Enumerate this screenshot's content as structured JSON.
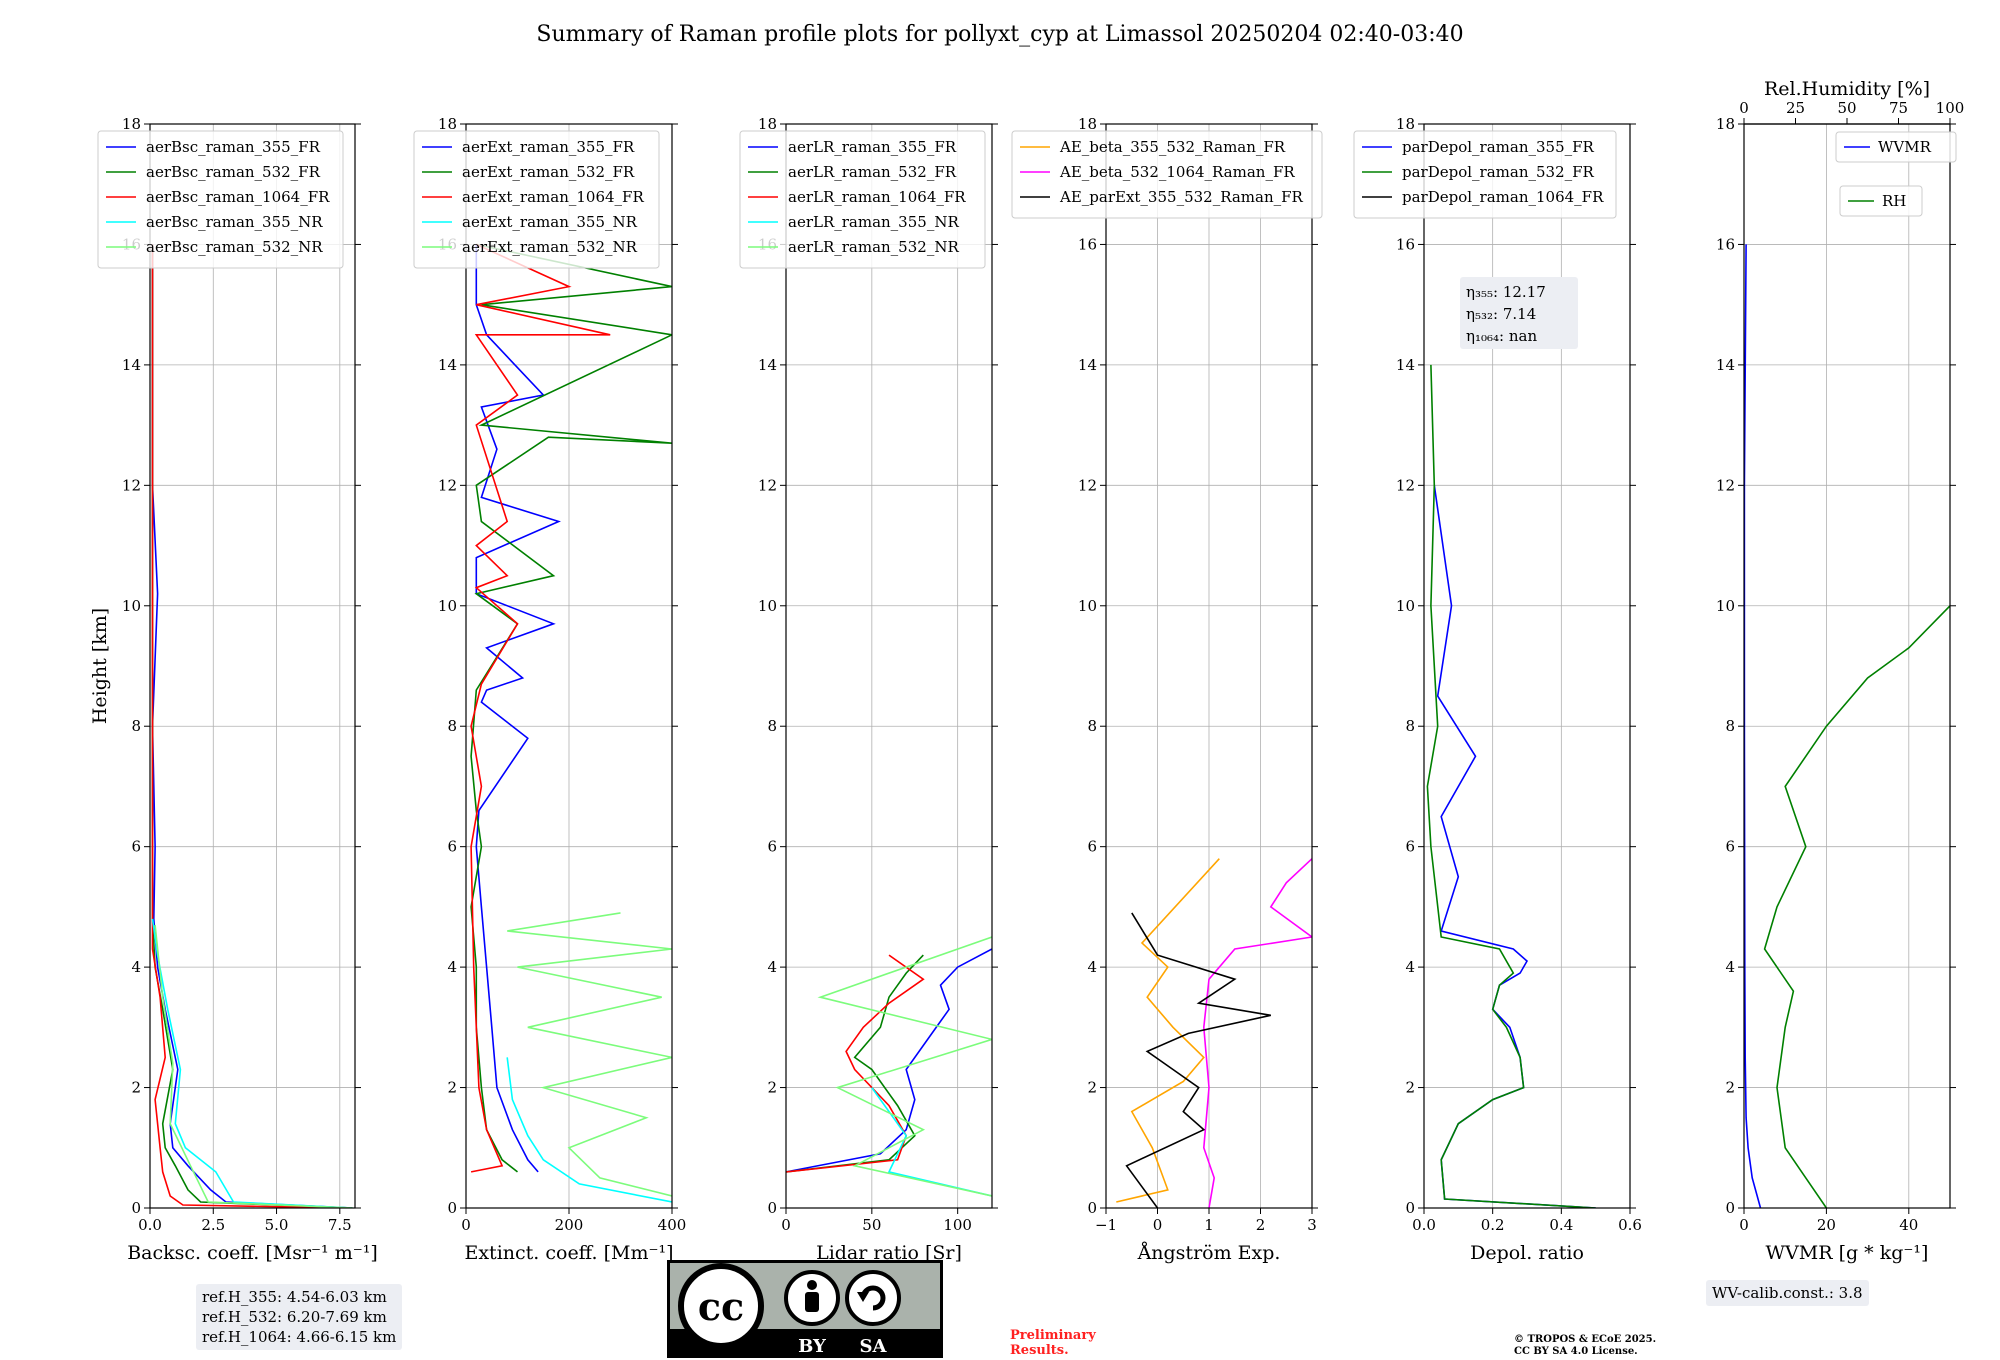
{
  "title": "Summary of Raman profile plots for pollyxt_cyp at Limassol 20250204 02:40-03:40",
  "ylabel": "Height [km]",
  "colors": {
    "c355": "#0000ff",
    "c532": "#008000",
    "c1064": "#ff0000",
    "c355nr": "#00ffff",
    "c532nr": "#7cfc7c",
    "orange": "#ffa500",
    "magenta": "#ff00ff",
    "black": "#000000"
  },
  "chart_data": [
    {
      "type": "line",
      "xlabel": "Backsc. coeff. [Msr⁻¹ m⁻¹]",
      "xlim": [
        0,
        8.1
      ],
      "ylim": [
        0,
        18
      ],
      "xticks": [
        "0.0",
        "2.5",
        "5.0",
        "7.5"
      ],
      "xtick_values": [
        0,
        2.5,
        5,
        7.5
      ],
      "yticks": [
        "0",
        "2",
        "4",
        "6",
        "8",
        "10",
        "12",
        "14",
        "16",
        "18"
      ],
      "legend": [
        "aerBsc_raman_355_FR",
        "aerBsc_raman_532_FR",
        "aerBsc_raman_1064_FR",
        "aerBsc_raman_355_NR",
        "aerBsc_raman_532_NR"
      ],
      "series": [
        {
          "name": "aerBsc_raman_355_FR",
          "color": "#0000ff",
          "x": [
            8.0,
            3.0,
            2.4,
            1.5,
            0.9,
            0.8,
            1.1,
            0.6,
            0.3,
            0.15,
            0.2,
            0.1,
            0.3,
            0.1,
            0.1,
            0.1
          ],
          "y": [
            0,
            0.1,
            0.3,
            0.7,
            1.0,
            1.4,
            2.3,
            3.3,
            4.0,
            4.8,
            6.0,
            8.0,
            10.2,
            12,
            14,
            16
          ]
        },
        {
          "name": "aerBsc_raman_532_FR",
          "color": "#008000",
          "x": [
            8.0,
            2.0,
            1.5,
            1.0,
            0.6,
            0.5,
            0.9,
            0.5,
            0.2,
            0.1,
            0.1,
            0.1
          ],
          "y": [
            0,
            0.1,
            0.3,
            0.7,
            1.0,
            1.4,
            2.3,
            3.3,
            4.0,
            4.8,
            8,
            16
          ]
        },
        {
          "name": "aerBsc_raman_1064_FR",
          "color": "#ff0000",
          "x": [
            8.0,
            1.3,
            0.8,
            0.5,
            0.4,
            0.3,
            0.2,
            0.6,
            0.4,
            0.1,
            0.1
          ],
          "y": [
            0,
            0.05,
            0.2,
            0.6,
            1.0,
            1.4,
            1.8,
            2.5,
            3.5,
            4.3,
            16
          ]
        },
        {
          "name": "aerBsc_raman_355_NR",
          "color": "#00ffff",
          "x": [
            8.0,
            3.3,
            2.6,
            1.4,
            1.0,
            1.2,
            0.7,
            0.3,
            0.1
          ],
          "y": [
            0,
            0.1,
            0.6,
            1.0,
            1.4,
            2.3,
            3.3,
            4.2,
            4.8
          ]
        },
        {
          "name": "aerBsc_raman_532_NR",
          "color": "#7cfc7c",
          "x": [
            8.0,
            2.3,
            1.6,
            0.8,
            0.9,
            0.5,
            0.2
          ],
          "y": [
            0,
            0.1,
            0.7,
            1.4,
            2.4,
            3.5,
            4.7
          ]
        }
      ]
    },
    {
      "type": "line",
      "xlabel": "Extinct. coeff. [Mm⁻¹]",
      "xlim": [
        0,
        400
      ],
      "ylim": [
        0,
        18
      ],
      "xticks": [
        "0",
        "200",
        "400"
      ],
      "xtick_values": [
        0,
        200,
        400
      ],
      "yticks": [
        "0",
        "2",
        "4",
        "6",
        "8",
        "10",
        "12",
        "14",
        "16",
        "18"
      ],
      "legend": [
        "aerExt_raman_355_FR",
        "aerExt_raman_532_FR",
        "aerExt_raman_1064_FR",
        "aerExt_raman_355_NR",
        "aerExt_raman_532_NR"
      ],
      "series": [
        {
          "name": "aerExt_raman_355_FR",
          "color": "#0000ff",
          "x": [
            140,
            120,
            90,
            60,
            50,
            40,
            30,
            20,
            25,
            120,
            30,
            40,
            110,
            40,
            170,
            20,
            20,
            180,
            30,
            60,
            30,
            150,
            40,
            20,
            20
          ],
          "y": [
            0.6,
            0.8,
            1.3,
            2,
            3,
            4,
            5,
            6,
            6.6,
            7.8,
            8.4,
            8.6,
            8.8,
            9.3,
            9.7,
            10.2,
            10.8,
            11.4,
            11.8,
            12.6,
            13.3,
            13.5,
            14.5,
            15,
            16
          ]
        },
        {
          "name": "aerExt_raman_532_FR",
          "color": "#008000",
          "x": [
            100,
            70,
            40,
            30,
            20,
            20,
            10,
            30,
            20,
            10,
            20,
            100,
            20,
            170,
            30,
            20,
            160,
            400,
            30,
            400,
            30,
            400,
            20
          ],
          "y": [
            0.6,
            0.8,
            1.3,
            2,
            3,
            4,
            5,
            6,
            6.6,
            7.5,
            8.6,
            9.7,
            10.2,
            10.5,
            11.4,
            12,
            12.8,
            12.7,
            13,
            14.5,
            15,
            15.3,
            16
          ]
        },
        {
          "name": "aerExt_raman_1064_FR",
          "color": "#ff0000",
          "x": [
            10,
            70,
            40,
            25,
            20,
            15,
            10,
            30,
            10,
            30,
            100,
            20,
            80,
            20,
            80,
            20,
            100,
            20,
            280,
            20,
            200,
            20
          ],
          "y": [
            0.6,
            0.7,
            1.3,
            2,
            3,
            4,
            6,
            7,
            8,
            8.7,
            9.7,
            10.3,
            10.5,
            11,
            11.4,
            13,
            13.5,
            14.5,
            14.5,
            15,
            15.3,
            16
          ]
        },
        {
          "name": "aerExt_raman_355_NR",
          "color": "#00ffff",
          "x": [
            400,
            220,
            150,
            120,
            90,
            80
          ],
          "y": [
            0.1,
            0.4,
            0.8,
            1.2,
            1.8,
            2.5
          ]
        },
        {
          "name": "aerExt_raman_532_NR",
          "color": "#7cfc7c",
          "x": [
            400,
            260,
            200,
            350,
            150,
            400,
            120,
            380,
            100,
            400,
            80,
            300
          ],
          "y": [
            0.2,
            0.5,
            1.0,
            1.5,
            2.0,
            2.5,
            3.0,
            3.5,
            4.0,
            4.3,
            4.6,
            4.9
          ]
        }
      ]
    },
    {
      "type": "line",
      "xlabel": "Lidar ratio [Sr]",
      "xlim": [
        0,
        120
      ],
      "ylim": [
        0,
        18
      ],
      "xticks": [
        "0",
        "50",
        "100"
      ],
      "xtick_values": [
        0,
        50,
        100
      ],
      "yticks": [
        "0",
        "2",
        "4",
        "6",
        "8",
        "10",
        "12",
        "14",
        "16",
        "18"
      ],
      "legend": [
        "aerLR_raman_355_FR",
        "aerLR_raman_532_FR",
        "aerLR_raman_1064_FR",
        "aerLR_raman_355_NR",
        "aerLR_raman_532_NR"
      ],
      "series": [
        {
          "name": "aerLR_raman_355_FR",
          "color": "#0000ff",
          "x": [
            0,
            55,
            70,
            75,
            70,
            85,
            95,
            90,
            100,
            120
          ],
          "y": [
            0.6,
            0.9,
            1.3,
            1.8,
            2.3,
            2.9,
            3.3,
            3.7,
            4.0,
            4.3
          ]
        },
        {
          "name": "aerLR_raman_532_FR",
          "color": "#008000",
          "x": [
            0,
            60,
            75,
            65,
            50,
            40,
            55,
            60,
            70,
            80
          ],
          "y": [
            0.6,
            0.8,
            1.2,
            1.7,
            2.3,
            2.5,
            3.0,
            3.5,
            3.9,
            4.2
          ]
        },
        {
          "name": "aerLR_raman_1064_FR",
          "color": "#ff0000",
          "x": [
            0,
            65,
            70,
            60,
            40,
            35,
            45,
            60,
            80,
            60
          ],
          "y": [
            0.6,
            0.8,
            1.2,
            1.7,
            2.3,
            2.6,
            3.0,
            3.4,
            3.8,
            4.2
          ]
        },
        {
          "name": "aerLR_raman_355_NR",
          "color": "#00ffff",
          "x": [
            120,
            60,
            70,
            50
          ],
          "y": [
            0.2,
            0.6,
            1.2,
            2.0
          ]
        },
        {
          "name": "aerLR_raman_532_NR",
          "color": "#7cfc7c",
          "x": [
            120,
            40,
            80,
            30,
            120,
            20,
            120
          ],
          "y": [
            0.2,
            0.7,
            1.3,
            2.0,
            2.8,
            3.5,
            4.5
          ]
        }
      ]
    },
    {
      "type": "line",
      "xlabel": "Ångström Exp.",
      "xlim": [
        -1,
        3
      ],
      "ylim": [
        0,
        18
      ],
      "xticks": [
        "−1",
        "0",
        "1",
        "2",
        "3"
      ],
      "xtick_values": [
        -1,
        0,
        1,
        2,
        3
      ],
      "yticks": [
        "0",
        "2",
        "4",
        "6",
        "8",
        "10",
        "12",
        "14",
        "16",
        "18"
      ],
      "legend": [
        "AE_beta_355_532_Raman_FR",
        "AE_beta_532_1064_Raman_FR",
        "AE_parExt_355_532_Raman_FR"
      ],
      "series": [
        {
          "name": "AE_beta_355_532_Raman_FR",
          "color": "#ffa500",
          "x": [
            -0.8,
            0.2,
            -0.1,
            -0.5,
            0.5,
            0.9,
            0.3,
            -0.2,
            0.2,
            -0.3,
            1.2
          ],
          "y": [
            0.1,
            0.3,
            1.0,
            1.6,
            2.1,
            2.5,
            3.0,
            3.5,
            4.0,
            4.4,
            5.8
          ]
        },
        {
          "name": "AE_beta_532_1064_Raman_FR",
          "color": "#ff00ff",
          "x": [
            1.0,
            1.1,
            0.9,
            1.0,
            0.9,
            1.0,
            1.5,
            3.0,
            2.2,
            2.5,
            3.0
          ],
          "y": [
            0.0,
            0.5,
            1.0,
            2.0,
            3.0,
            3.8,
            4.3,
            4.5,
            5.0,
            5.4,
            5.8
          ]
        },
        {
          "name": "AE_parExt_355_532_Raman_FR",
          "color": "#000000",
          "x": [
            0,
            -0.6,
            0.9,
            0.5,
            0.8,
            0.3,
            -0.2,
            0.6,
            2.2,
            0.8,
            1.5,
            0.0,
            -0.5
          ],
          "y": [
            0,
            0.7,
            1.3,
            1.6,
            2.0,
            2.3,
            2.6,
            2.9,
            3.2,
            3.4,
            3.8,
            4.2,
            4.9
          ]
        }
      ]
    },
    {
      "type": "line",
      "xlabel": "Depol. ratio",
      "xlim": [
        0,
        0.6
      ],
      "ylim": [
        0,
        18
      ],
      "xticks": [
        "0.0",
        "0.2",
        "0.4",
        "0.6"
      ],
      "xtick_values": [
        0,
        0.2,
        0.4,
        0.6
      ],
      "yticks": [
        "0",
        "2",
        "4",
        "6",
        "8",
        "10",
        "12",
        "14",
        "16",
        "18"
      ],
      "legend": [
        "parDepol_raman_355_FR",
        "parDepol_raman_532_FR",
        "parDepol_raman_1064_FR"
      ],
      "annotation": [
        "η₃₅₅: 12.17",
        "η₅₃₂: 7.14",
        "η₁₀₆₄: nan"
      ],
      "series": [
        {
          "name": "parDepol_raman_355_FR",
          "color": "#0000ff",
          "x": [
            0.5,
            0.06,
            0.05,
            0.1,
            0.2,
            0.29,
            0.28,
            0.25,
            0.2,
            0.22,
            0.28,
            0.3,
            0.26,
            0.05,
            0.1,
            0.05,
            0.15,
            0.04,
            0.08,
            0.03
          ],
          "y": [
            0.0,
            0.15,
            0.8,
            1.4,
            1.8,
            2.0,
            2.5,
            3.0,
            3.3,
            3.7,
            3.9,
            4.1,
            4.3,
            4.6,
            5.5,
            6.5,
            7.5,
            8.5,
            10,
            12
          ]
        },
        {
          "name": "parDepol_raman_532_FR",
          "color": "#008000",
          "x": [
            0.5,
            0.06,
            0.05,
            0.1,
            0.2,
            0.29,
            0.28,
            0.24,
            0.2,
            0.22,
            0.26,
            0.22,
            0.05,
            0.02,
            0.01,
            0.04,
            0.02,
            0.03,
            0.02
          ],
          "y": [
            0.0,
            0.15,
            0.8,
            1.4,
            1.8,
            2.0,
            2.5,
            3.0,
            3.3,
            3.7,
            3.9,
            4.3,
            4.5,
            6,
            7,
            8,
            10,
            12,
            14
          ]
        }
      ]
    },
    {
      "type": "line",
      "xlabel": "WVMR [g * kg⁻¹]",
      "x2label": "Rel.Humidity [%]",
      "xlim": [
        0,
        50
      ],
      "x2lim": [
        0,
        100
      ],
      "ylim": [
        0,
        18
      ],
      "xticks": [
        "0",
        "20",
        "40"
      ],
      "xtick_values": [
        0,
        20,
        40
      ],
      "x2ticks": [
        "0",
        "25",
        "50",
        "75",
        "100"
      ],
      "x2tick_values": [
        0,
        25,
        50,
        75,
        100
      ],
      "yticks": [
        "0",
        "2",
        "4",
        "6",
        "8",
        "10",
        "12",
        "14",
        "16",
        "18"
      ],
      "legend": [
        "WVMR",
        "RH"
      ],
      "series": [
        {
          "name": "WVMR",
          "color": "#0000ff",
          "x": [
            4,
            2,
            1,
            0.5,
            0.3,
            0.2,
            0.1,
            0.1,
            0.5
          ],
          "y": [
            0,
            0.5,
            1.0,
            1.5,
            2.5,
            4,
            8,
            12,
            16
          ]
        },
        {
          "name": "RH",
          "color": "#008000",
          "x": [
            20,
            15,
            10,
            8,
            10,
            12,
            5,
            8,
            15,
            10,
            20,
            30,
            40,
            50
          ],
          "y": [
            0,
            0.5,
            1,
            2,
            3,
            3.6,
            4.3,
            5,
            6,
            7,
            8,
            8.8,
            9.3,
            10
          ]
        }
      ]
    }
  ],
  "refbox": [
    "ref.H_355: 4.54-6.03 km",
    "ref.H_532: 6.20-7.69 km",
    "ref.H_1064: 4.66-6.15 km"
  ],
  "wv_calib": "WV-calib.const.: 3.8",
  "license_badge": {
    "cc": "cc",
    "by": "BY",
    "sa": "SA"
  },
  "preliminary": [
    "Preliminary",
    "Results."
  ],
  "copyright": [
    "© TROPOS & ECoE 2025.",
    "CC BY SA 4.0 License."
  ]
}
